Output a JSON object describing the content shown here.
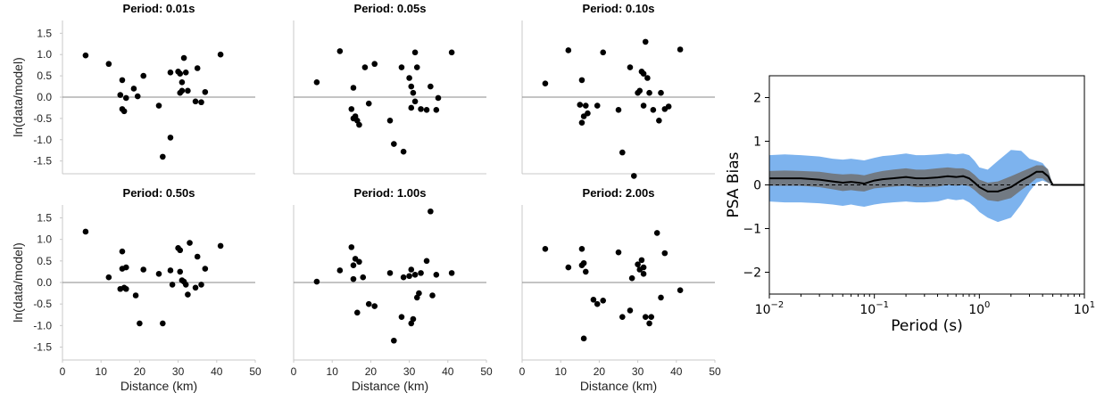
{
  "chart_data": [
    {
      "type": "scatter",
      "title": "Period: 0.01s",
      "ylabel": "ln(data/model)",
      "xlabel": "",
      "xlim": [
        0,
        50
      ],
      "ylim": [
        -1.8,
        1.8
      ],
      "yticks": [
        "1.5",
        "1.0",
        "0.5",
        "0.0",
        "-0.5",
        "-1.0",
        "-1.5"
      ],
      "xticks": [],
      "reference_line": 0,
      "points": [
        [
          6,
          0.98
        ],
        [
          12,
          0.78
        ],
        [
          15,
          0.05
        ],
        [
          15.5,
          0.4
        ],
        [
          15.5,
          -0.28
        ],
        [
          16,
          -0.33
        ],
        [
          16.5,
          -0.02
        ],
        [
          18.5,
          0.2
        ],
        [
          19.5,
          0.02
        ],
        [
          21,
          0.5
        ],
        [
          25,
          -0.2
        ],
        [
          26,
          -1.4
        ],
        [
          28,
          -0.95
        ],
        [
          28,
          0.58
        ],
        [
          30,
          0.6
        ],
        [
          30.5,
          0.55
        ],
        [
          30.5,
          0.1
        ],
        [
          31,
          0.35
        ],
        [
          31,
          0.15
        ],
        [
          31.5,
          0.92
        ],
        [
          32,
          0.58
        ],
        [
          32.5,
          0.15
        ],
        [
          34.5,
          -0.1
        ],
        [
          35,
          0.68
        ],
        [
          36,
          -0.12
        ],
        [
          37,
          0.12
        ],
        [
          41,
          1.0
        ]
      ]
    },
    {
      "type": "scatter",
      "title": "Period: 0.05s",
      "ylabel": "",
      "xlabel": "",
      "xlim": [
        0,
        50
      ],
      "ylim": [
        -1.8,
        1.8
      ],
      "yticks": [],
      "xticks": [],
      "reference_line": 0,
      "points": [
        [
          6,
          0.35
        ],
        [
          12,
          1.08
        ],
        [
          15,
          -0.28
        ],
        [
          15.5,
          0.22
        ],
        [
          15.5,
          -0.5
        ],
        [
          16,
          -0.45
        ],
        [
          16.5,
          -0.55
        ],
        [
          17,
          -0.65
        ],
        [
          18.5,
          0.7
        ],
        [
          19.5,
          -0.15
        ],
        [
          21,
          0.78
        ],
        [
          25,
          -0.55
        ],
        [
          26,
          -1.1
        ],
        [
          28,
          0.7
        ],
        [
          28.5,
          -1.28
        ],
        [
          30,
          0.45
        ],
        [
          30.5,
          0.25
        ],
        [
          30.5,
          -0.25
        ],
        [
          31,
          0.1
        ],
        [
          31.5,
          -0.1
        ],
        [
          31.5,
          1.05
        ],
        [
          32,
          0.7
        ],
        [
          33,
          -0.28
        ],
        [
          34.5,
          -0.3
        ],
        [
          35.5,
          0.25
        ],
        [
          37,
          -0.3
        ],
        [
          37.5,
          -0.02
        ],
        [
          41,
          1.05
        ]
      ]
    },
    {
      "type": "scatter",
      "title": "Period: 0.10s",
      "ylabel": "",
      "xlabel": "",
      "xlim": [
        0,
        50
      ],
      "ylim": [
        -1.8,
        1.8
      ],
      "yticks": [],
      "xticks": [],
      "reference_line": 0,
      "points": [
        [
          6,
          0.32
        ],
        [
          12,
          1.1
        ],
        [
          15,
          -0.18
        ],
        [
          15.5,
          0.4
        ],
        [
          15.5,
          -0.6
        ],
        [
          16,
          -0.45
        ],
        [
          16.5,
          -0.2
        ],
        [
          17,
          -0.38
        ],
        [
          19.5,
          -0.2
        ],
        [
          21,
          1.05
        ],
        [
          25,
          -0.3
        ],
        [
          26,
          -1.3
        ],
        [
          28,
          0.7
        ],
        [
          29,
          -1.85
        ],
        [
          30,
          0.1
        ],
        [
          30.5,
          0.15
        ],
        [
          31,
          0.6
        ],
        [
          31.5,
          0.55
        ],
        [
          31.5,
          -0.2
        ],
        [
          32,
          1.3
        ],
        [
          32.5,
          0.45
        ],
        [
          33,
          0.1
        ],
        [
          34,
          -0.3
        ],
        [
          35.5,
          -0.55
        ],
        [
          36,
          0.1
        ],
        [
          37,
          -0.28
        ],
        [
          38,
          -0.22
        ],
        [
          41,
          1.12
        ]
      ]
    },
    {
      "type": "scatter",
      "title": "Period: 0.50s",
      "ylabel": "ln(data/model)",
      "xlabel": "Distance (km)",
      "xlim": [
        0,
        50
      ],
      "ylim": [
        -1.8,
        1.8
      ],
      "yticks": [
        "1.5",
        "1.0",
        "0.5",
        "0.0",
        "-0.5",
        "-1.0",
        "-1.5"
      ],
      "xticks": [
        "0",
        "10",
        "20",
        "30",
        "40",
        "50"
      ],
      "reference_line": 0,
      "points": [
        [
          6,
          1.18
        ],
        [
          12,
          0.12
        ],
        [
          15,
          -0.15
        ],
        [
          15.5,
          0.32
        ],
        [
          15.5,
          0.72
        ],
        [
          16,
          -0.12
        ],
        [
          16.5,
          0.35
        ],
        [
          16.5,
          -0.15
        ],
        [
          19,
          -0.3
        ],
        [
          20,
          -0.95
        ],
        [
          21,
          0.3
        ],
        [
          25,
          0.2
        ],
        [
          26,
          -0.95
        ],
        [
          28,
          0.28
        ],
        [
          28.5,
          -0.05
        ],
        [
          30,
          0.8
        ],
        [
          30.5,
          0.25
        ],
        [
          30.5,
          0.75
        ],
        [
          31,
          0.05
        ],
        [
          31.5,
          0.02
        ],
        [
          32,
          -0.05
        ],
        [
          32.5,
          -0.28
        ],
        [
          33,
          0.92
        ],
        [
          34.5,
          -0.12
        ],
        [
          35,
          0.6
        ],
        [
          36,
          -0.05
        ],
        [
          37,
          0.32
        ],
        [
          41,
          0.85
        ]
      ]
    },
    {
      "type": "scatter",
      "title": "Period: 1.00s",
      "ylabel": "",
      "xlabel": "Distance (km)",
      "xlim": [
        0,
        50
      ],
      "ylim": [
        -1.8,
        1.8
      ],
      "yticks": [],
      "xticks": [
        "0",
        "10",
        "20",
        "30",
        "40",
        "50"
      ],
      "reference_line": 0,
      "points": [
        [
          6,
          0.02
        ],
        [
          12,
          0.28
        ],
        [
          15,
          0.82
        ],
        [
          15.5,
          0.4
        ],
        [
          15.5,
          0.08
        ],
        [
          16,
          0.55
        ],
        [
          16.5,
          -0.7
        ],
        [
          17,
          0.48
        ],
        [
          18,
          0.12
        ],
        [
          19.5,
          -0.5
        ],
        [
          21,
          -0.55
        ],
        [
          25,
          0.22
        ],
        [
          26,
          -1.35
        ],
        [
          28,
          -0.8
        ],
        [
          28.5,
          0.12
        ],
        [
          30,
          0.15
        ],
        [
          30.5,
          -0.95
        ],
        [
          30.5,
          0.3
        ],
        [
          31,
          -0.85
        ],
        [
          31.5,
          0.18
        ],
        [
          32,
          -0.35
        ],
        [
          32.5,
          -0.25
        ],
        [
          33,
          0.22
        ],
        [
          34.5,
          0.5
        ],
        [
          35.5,
          1.65
        ],
        [
          36,
          -0.3
        ],
        [
          37,
          0.18
        ],
        [
          41,
          0.22
        ]
      ]
    },
    {
      "type": "scatter",
      "title": "Period: 2.00s",
      "ylabel": "",
      "xlabel": "Distance (km)",
      "xlim": [
        0,
        50
      ],
      "ylim": [
        -1.8,
        1.8
      ],
      "yticks": [],
      "xticks": [
        "0",
        "10",
        "20",
        "30",
        "40",
        "50"
      ],
      "reference_line": 0,
      "points": [
        [
          6,
          0.78
        ],
        [
          12,
          0.35
        ],
        [
          15.5,
          0.78
        ],
        [
          15.5,
          0.4
        ],
        [
          16,
          0.45
        ],
        [
          16.5,
          0.25
        ],
        [
          16,
          -1.3
        ],
        [
          18.5,
          -0.4
        ],
        [
          19.5,
          -0.5
        ],
        [
          21,
          -0.42
        ],
        [
          25,
          0.7
        ],
        [
          26,
          -0.8
        ],
        [
          28,
          -0.65
        ],
        [
          28.5,
          0.1
        ],
        [
          30,
          0.42
        ],
        [
          30.5,
          0.3
        ],
        [
          31,
          0.52
        ],
        [
          31.5,
          0.35
        ],
        [
          31.5,
          0.2
        ],
        [
          32,
          -0.8
        ],
        [
          33,
          -0.95
        ],
        [
          33.5,
          -0.8
        ],
        [
          35,
          1.15
        ],
        [
          36,
          -0.35
        ],
        [
          37,
          0.68
        ],
        [
          41,
          -0.18
        ]
      ]
    },
    {
      "type": "line",
      "title": "",
      "xlabel": "Period (s)",
      "ylabel": "PSA Bias",
      "xscale": "log",
      "xlim": [
        0.01,
        10
      ],
      "ylim": [
        -2.5,
        2.5
      ],
      "xticks": [
        {
          "base": "10",
          "exp": "−2"
        },
        {
          "base": "10",
          "exp": "−1"
        },
        {
          "base": "10",
          "exp": "0"
        },
        {
          "base": "10",
          "exp": "1"
        }
      ],
      "yticks": [
        "2",
        "1",
        "0",
        "−1",
        "−2"
      ],
      "reference_line": 0,
      "colors": {
        "outer_band": "#7db3ee",
        "inner_band": "#707070",
        "line": "#000000"
      },
      "x": [
        0.01,
        0.014,
        0.02,
        0.03,
        0.04,
        0.05,
        0.06,
        0.07,
        0.08,
        0.1,
        0.12,
        0.15,
        0.2,
        0.25,
        0.3,
        0.4,
        0.5,
        0.6,
        0.7,
        0.8,
        0.9,
        1.0,
        1.2,
        1.5,
        2.0,
        2.5,
        3.0,
        3.5,
        4.0,
        4.5,
        5.0,
        10.0
      ],
      "mean": [
        0.15,
        0.15,
        0.15,
        0.12,
        0.08,
        0.05,
        0.07,
        0.05,
        0.03,
        0.1,
        0.13,
        0.15,
        0.18,
        0.15,
        0.15,
        0.17,
        0.2,
        0.18,
        0.2,
        0.15,
        0.05,
        -0.05,
        -0.15,
        -0.15,
        -0.05,
        0.1,
        0.2,
        0.3,
        0.3,
        0.2,
        0.0,
        0.0
      ],
      "inner_upper": [
        0.32,
        0.33,
        0.32,
        0.3,
        0.26,
        0.24,
        0.25,
        0.24,
        0.22,
        0.28,
        0.32,
        0.35,
        0.38,
        0.35,
        0.35,
        0.38,
        0.4,
        0.38,
        0.38,
        0.33,
        0.23,
        0.12,
        0.05,
        0.08,
        0.2,
        0.3,
        0.38,
        0.45,
        0.45,
        0.36,
        0.0,
        0.0
      ],
      "inner_lower": [
        -0.02,
        -0.02,
        -0.02,
        -0.05,
        -0.1,
        -0.14,
        -0.12,
        -0.14,
        -0.15,
        -0.08,
        -0.06,
        -0.04,
        -0.02,
        -0.05,
        -0.05,
        -0.04,
        0.0,
        -0.02,
        0.0,
        -0.03,
        -0.12,
        -0.22,
        -0.35,
        -0.38,
        -0.3,
        -0.12,
        0.02,
        0.15,
        0.15,
        0.05,
        0.0,
        0.0
      ],
      "outer_upper": [
        0.68,
        0.7,
        0.68,
        0.65,
        0.6,
        0.58,
        0.6,
        0.58,
        0.56,
        0.62,
        0.66,
        0.68,
        0.72,
        0.68,
        0.68,
        0.7,
        0.72,
        0.7,
        0.72,
        0.68,
        0.55,
        0.4,
        0.35,
        0.55,
        0.8,
        0.78,
        0.6,
        0.55,
        0.5,
        0.35,
        0.0,
        0.0
      ],
      "outer_lower": [
        -0.38,
        -0.4,
        -0.4,
        -0.42,
        -0.45,
        -0.48,
        -0.45,
        -0.48,
        -0.5,
        -0.45,
        -0.42,
        -0.4,
        -0.38,
        -0.4,
        -0.4,
        -0.38,
        -0.32,
        -0.35,
        -0.33,
        -0.4,
        -0.5,
        -0.62,
        -0.75,
        -0.85,
        -0.75,
        -0.45,
        -0.15,
        0.05,
        0.1,
        0.05,
        0.0,
        0.0
      ]
    }
  ]
}
